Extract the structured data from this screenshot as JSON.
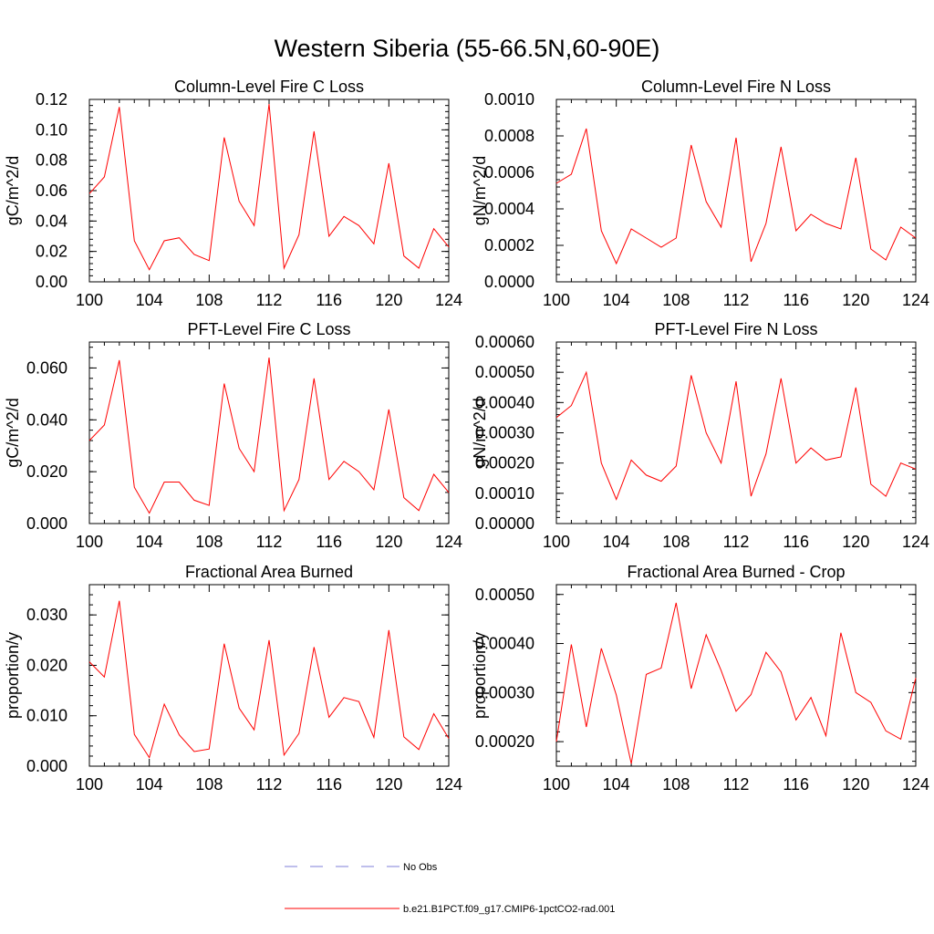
{
  "figure_title": "Western Siberia (55-66.5N,60-90E)",
  "legend": {
    "entries": [
      {
        "label": "No Obs",
        "color": "#7f7fd9",
        "dash": true
      },
      {
        "label": "b.e21.B1PCT.f09_g17.CMIP6-1pctCO2-rad.001",
        "color": "#ff0000",
        "dash": false
      }
    ]
  },
  "series_color": "#ff0000",
  "chart_data": [
    {
      "type": "line",
      "title": "Column-Level Fire C Loss",
      "ylabel": "gC/m^2/d",
      "xlim": [
        100,
        124
      ],
      "ylim": [
        0,
        0.12
      ],
      "xticks": [
        "100",
        "104",
        "108",
        "112",
        "116",
        "120",
        "124"
      ],
      "yticks": [
        "0.00",
        "0.02",
        "0.04",
        "0.06",
        "0.08",
        "0.10",
        "0.12"
      ],
      "x": [
        100,
        101,
        102,
        103,
        104,
        105,
        106,
        107,
        108,
        109,
        110,
        111,
        112,
        113,
        114,
        115,
        116,
        117,
        118,
        119,
        120,
        121,
        122,
        123,
        124
      ],
      "values": [
        0.058,
        0.069,
        0.115,
        0.027,
        0.008,
        0.027,
        0.029,
        0.018,
        0.014,
        0.095,
        0.053,
        0.037,
        0.117,
        0.009,
        0.031,
        0.099,
        0.03,
        0.043,
        0.037,
        0.025,
        0.078,
        0.017,
        0.009,
        0.035,
        0.023
      ]
    },
    {
      "type": "line",
      "title": "Column-Level Fire N Loss",
      "ylabel": "gN/m^2/d",
      "xlim": [
        100,
        124
      ],
      "ylim": [
        0,
        0.001
      ],
      "xticks": [
        "100",
        "104",
        "108",
        "112",
        "116",
        "120",
        "124"
      ],
      "yticks": [
        "0.0000",
        "0.0002",
        "0.0004",
        "0.0006",
        "0.0008",
        "0.0010"
      ],
      "x": [
        100,
        101,
        102,
        103,
        104,
        105,
        106,
        107,
        108,
        109,
        110,
        111,
        112,
        113,
        114,
        115,
        116,
        117,
        118,
        119,
        120,
        121,
        122,
        123,
        124
      ],
      "values": [
        0.00054,
        0.00059,
        0.00084,
        0.00028,
        0.0001,
        0.00029,
        0.00024,
        0.00019,
        0.00024,
        0.00075,
        0.00044,
        0.0003,
        0.00079,
        0.00011,
        0.00032,
        0.00074,
        0.00028,
        0.00037,
        0.00032,
        0.00029,
        0.00068,
        0.00018,
        0.00012,
        0.0003,
        0.00024
      ]
    },
    {
      "type": "line",
      "title": "PFT-Level Fire C Loss",
      "ylabel": "gC/m^2/d",
      "xlim": [
        100,
        124
      ],
      "ylim": [
        0,
        0.07
      ],
      "xticks": [
        "100",
        "104",
        "108",
        "112",
        "116",
        "120",
        "124"
      ],
      "yticks": [
        "0.000",
        "0.020",
        "0.040",
        "0.060"
      ],
      "x": [
        100,
        101,
        102,
        103,
        104,
        105,
        106,
        107,
        108,
        109,
        110,
        111,
        112,
        113,
        114,
        115,
        116,
        117,
        118,
        119,
        120,
        121,
        122,
        123,
        124
      ],
      "values": [
        0.032,
        0.038,
        0.063,
        0.014,
        0.004,
        0.016,
        0.016,
        0.009,
        0.007,
        0.054,
        0.029,
        0.02,
        0.064,
        0.005,
        0.017,
        0.056,
        0.017,
        0.024,
        0.02,
        0.013,
        0.044,
        0.01,
        0.005,
        0.019,
        0.012
      ]
    },
    {
      "type": "line",
      "title": "PFT-Level Fire N Loss",
      "ylabel": "gN/m^2/d",
      "xlim": [
        100,
        124
      ],
      "ylim": [
        0,
        0.0006
      ],
      "xticks": [
        "100",
        "104",
        "108",
        "112",
        "116",
        "120",
        "124"
      ],
      "yticks": [
        "0.00000",
        "0.00010",
        "0.00020",
        "0.00030",
        "0.00040",
        "0.00050",
        "0.00060"
      ],
      "x": [
        100,
        101,
        102,
        103,
        104,
        105,
        106,
        107,
        108,
        109,
        110,
        111,
        112,
        113,
        114,
        115,
        116,
        117,
        118,
        119,
        120,
        121,
        122,
        123,
        124
      ],
      "values": [
        0.00035,
        0.00039,
        0.0005,
        0.0002,
        8e-05,
        0.00021,
        0.00016,
        0.00014,
        0.00019,
        0.00049,
        0.0003,
        0.0002,
        0.00047,
        9e-05,
        0.00023,
        0.00048,
        0.0002,
        0.00025,
        0.00021,
        0.00022,
        0.00045,
        0.00013,
        9e-05,
        0.0002,
        0.00018
      ]
    },
    {
      "type": "line",
      "title": "Fractional Area Burned",
      "ylabel": "proportion/y",
      "xlim": [
        100,
        124
      ],
      "ylim": [
        0,
        0.036
      ],
      "xticks": [
        "100",
        "104",
        "108",
        "112",
        "116",
        "120",
        "124"
      ],
      "yticks": [
        "0.000",
        "0.010",
        "0.020",
        "0.030"
      ],
      "x": [
        100,
        101,
        102,
        103,
        104,
        105,
        106,
        107,
        108,
        109,
        110,
        111,
        112,
        113,
        114,
        115,
        116,
        117,
        118,
        119,
        120,
        121,
        122,
        123,
        124
      ],
      "values": [
        0.0207,
        0.0177,
        0.0328,
        0.0063,
        0.0017,
        0.0123,
        0.0062,
        0.0029,
        0.0034,
        0.0243,
        0.0115,
        0.0072,
        0.025,
        0.0022,
        0.0065,
        0.0236,
        0.0097,
        0.0136,
        0.0128,
        0.0057,
        0.027,
        0.0058,
        0.0033,
        0.0104,
        0.0055
      ]
    },
    {
      "type": "line",
      "title": "Fractional Area Burned - Crop",
      "ylabel": "proportion/y",
      "xlim": [
        100,
        124
      ],
      "ylim": [
        0.00015,
        0.00052
      ],
      "xticks": [
        "100",
        "104",
        "108",
        "112",
        "116",
        "120",
        "124"
      ],
      "yticks": [
        "0.00020",
        "0.00030",
        "0.00040",
        "0.00050"
      ],
      "x": [
        100,
        101,
        102,
        103,
        104,
        105,
        106,
        107,
        108,
        109,
        110,
        111,
        112,
        113,
        114,
        115,
        116,
        117,
        118,
        119,
        120,
        121,
        122,
        123,
        124
      ],
      "values": [
        0.0002,
        0.000398,
        0.00023,
        0.00039,
        0.000295,
        0.000155,
        0.000337,
        0.00035,
        0.000483,
        0.000308,
        0.000418,
        0.000345,
        0.000262,
        0.000296,
        0.000382,
        0.000342,
        0.000244,
        0.00029,
        0.000212,
        0.000422,
        0.0003,
        0.00028,
        0.000222,
        0.000205,
        0.00033
      ]
    }
  ]
}
